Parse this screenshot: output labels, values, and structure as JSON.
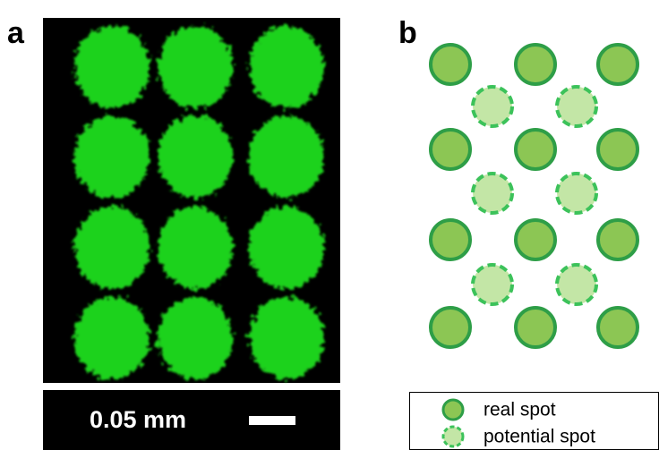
{
  "panels": {
    "a": {
      "label": "a",
      "scale_label": "0.05 mm"
    },
    "b": {
      "label": "b",
      "legend": [
        "real spot",
        "potential spot"
      ]
    }
  }
}
